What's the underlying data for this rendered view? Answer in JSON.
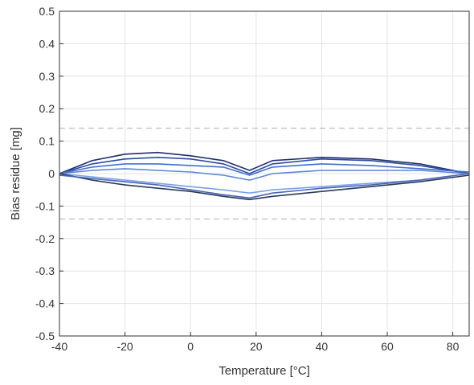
{
  "chart_data": {
    "type": "line",
    "title": "",
    "xlabel": "Temperature [°C]",
    "ylabel": "Bias residue [mg]",
    "xlim": [
      -40,
      85
    ],
    "ylim": [
      -0.5,
      0.5
    ],
    "xticks": [
      -40,
      -20,
      0,
      20,
      40,
      60,
      80
    ],
    "yticks": [
      0.5,
      0.4,
      0.3,
      0.2,
      0.1,
      0,
      -0.1,
      -0.2,
      -0.3,
      -0.4,
      -0.5
    ],
    "xtick_labels": [
      "-40",
      "-20",
      "0",
      "20",
      "40",
      "60",
      "80"
    ],
    "ytick_labels": [
      "0.5",
      "0.4",
      "0.3",
      "0.2",
      "0.1",
      "0",
      "-0.1",
      "-0.2",
      "-0.3",
      "-0.4",
      "-0.5"
    ],
    "grid": true,
    "thresholds": [
      0.14,
      -0.14
    ],
    "colors": {
      "series": [
        "#1f2f6e",
        "#2b4c9e",
        "#3f6fd0",
        "#5a86d8",
        "#7aa3e6",
        "#2a3a58",
        "#4a64b8"
      ],
      "threshold": "#c8c8c8",
      "grid": "#e3e3e3",
      "axis": "#333333"
    },
    "series": [
      {
        "x": [
          -40,
          -30,
          -20,
          -10,
          0,
          10,
          18,
          25,
          40,
          55,
          70,
          85
        ],
        "y": [
          0.0,
          0.04,
          0.06,
          0.065,
          0.055,
          0.04,
          0.01,
          0.04,
          0.05,
          0.045,
          0.03,
          0.0
        ]
      },
      {
        "x": [
          -40,
          -30,
          -20,
          -10,
          0,
          10,
          18,
          25,
          40,
          55,
          70,
          85
        ],
        "y": [
          0.0,
          0.03,
          0.045,
          0.05,
          0.045,
          0.03,
          0.0,
          0.03,
          0.045,
          0.04,
          0.025,
          0.0
        ]
      },
      {
        "x": [
          -40,
          -30,
          -20,
          -10,
          0,
          10,
          18,
          25,
          40,
          55,
          70,
          85
        ],
        "y": [
          0.0,
          0.02,
          0.03,
          0.03,
          0.025,
          0.02,
          -0.005,
          0.02,
          0.03,
          0.025,
          0.015,
          0.005
        ]
      },
      {
        "x": [
          -40,
          -30,
          -20,
          -10,
          0,
          10,
          18,
          25,
          40,
          55,
          70,
          85
        ],
        "y": [
          0.0,
          0.01,
          0.015,
          0.01,
          0.005,
          -0.005,
          -0.02,
          0.0,
          0.01,
          0.01,
          0.01,
          0.0
        ]
      },
      {
        "x": [
          -40,
          -30,
          -20,
          -10,
          0,
          10,
          18,
          25,
          40,
          55,
          70,
          85
        ],
        "y": [
          0.0,
          -0.01,
          -0.02,
          -0.03,
          -0.04,
          -0.05,
          -0.06,
          -0.05,
          -0.04,
          -0.03,
          -0.02,
          0.0
        ]
      },
      {
        "x": [
          -40,
          -30,
          -20,
          -10,
          0,
          10,
          18,
          25,
          40,
          55,
          70,
          85
        ],
        "y": [
          0.0,
          -0.02,
          -0.035,
          -0.045,
          -0.055,
          -0.07,
          -0.08,
          -0.07,
          -0.055,
          -0.04,
          -0.025,
          -0.005
        ]
      },
      {
        "x": [
          -40,
          -30,
          -20,
          -10,
          0,
          10,
          18,
          25,
          40,
          55,
          70,
          85
        ],
        "y": [
          -0.005,
          -0.015,
          -0.025,
          -0.035,
          -0.05,
          -0.065,
          -0.075,
          -0.06,
          -0.045,
          -0.035,
          -0.02,
          0.0
        ]
      }
    ]
  }
}
